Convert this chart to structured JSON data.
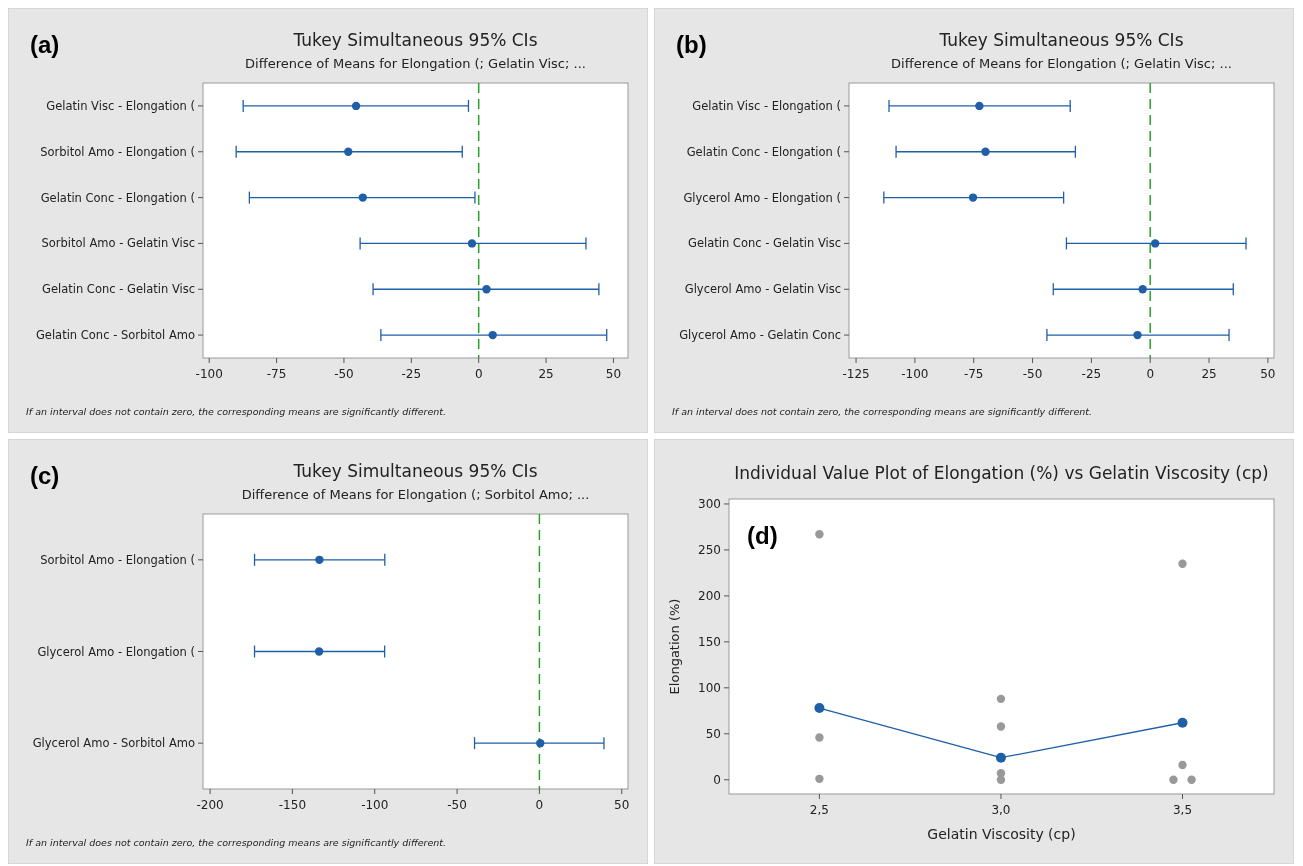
{
  "chart_data": [
    {
      "type": "scatter",
      "orientation": "horizontal",
      "title": "Tukey Simultaneous 95% CIs",
      "subtitle": "Difference of Means for Elongation (; Gelatin Visc; ...",
      "categories": [
        "Gelatin Visc - Elongation (",
        "Sorbitol Amo - Elongation (",
        "Gelatin Conc - Elongation (",
        "Sorbitol Amo - Gelatin Visc",
        "Gelatin Conc - Gelatin Visc",
        "Gelatin Conc - Sorbitol Amo"
      ],
      "series": [
        {
          "color": "#1f5fa8",
          "values": [
            -45.5,
            -48.4,
            -43,
            -2.5,
            2.9,
            5.2
          ],
          "errors": [
            [
              -87.4,
              -3.8
            ],
            [
              -90,
              -6.1
            ],
            [
              -85.1,
              -1.4
            ],
            [
              -44,
              39.8
            ],
            [
              -39.2,
              44.6
            ],
            [
              -36.3,
              47.5
            ]
          ]
        }
      ],
      "xlim": [
        -102.3,
        55.4
      ],
      "xticks": [
        -100,
        -75,
        -50,
        -25,
        0,
        25,
        50
      ],
      "ref_lines": [
        {
          "axis": "x",
          "value": 0,
          "color": "#2ca02c",
          "line_style": "dashed"
        }
      ],
      "marker": "circle",
      "grid": false,
      "annotations": [
        "(a)",
        "If an interval does not contain zero, the corresponding means are significantly different."
      ]
    },
    {
      "type": "scatter",
      "orientation": "horizontal",
      "title": "Tukey Simultaneous 95% CIs",
      "subtitle": "Difference of Means for Elongation (; Gelatin Visc; ...",
      "categories": [
        "Gelatin Visc - Elongation (",
        "Gelatin Conc - Elongation (",
        "Glycerol Amo - Elongation (",
        "Gelatin Conc - Gelatin Visc",
        "Glycerol Amo - Gelatin Visc",
        "Glycerol Amo - Gelatin Conc"
      ],
      "series": [
        {
          "color": "#1f5fa8",
          "values": [
            -72.6,
            -70,
            -75.3,
            2.1,
            -3.2,
            -5.4
          ],
          "errors": [
            [
              -111,
              -34
            ],
            [
              -108,
              -31.8
            ],
            [
              -113.2,
              -36.8
            ],
            [
              -35.6,
              40.7
            ],
            [
              -41.2,
              35.3
            ],
            [
              -43.9,
              33.5
            ]
          ]
        }
      ],
      "xlim": [
        -128,
        52.6
      ],
      "xticks": [
        -125,
        -100,
        -75,
        -50,
        -25,
        0,
        25,
        50
      ],
      "ref_lines": [
        {
          "axis": "x",
          "value": 0,
          "color": "#2ca02c",
          "line_style": "dashed"
        }
      ],
      "marker": "circle",
      "grid": false,
      "annotations": [
        "(b)",
        "If an interval does not contain zero, the corresponding means are significantly different."
      ]
    },
    {
      "type": "scatter",
      "orientation": "horizontal",
      "title": "Tukey Simultaneous 95% CIs",
      "subtitle": "Difference of Means for Elongation (; Sorbitol Amo; ...",
      "categories": [
        "Sorbitol Amo - Elongation (",
        "Glycerol Amo - Elongation (",
        "Glycerol Amo - Sorbitol Amo"
      ],
      "series": [
        {
          "color": "#1f5fa8",
          "values": [
            -133.6,
            -133.8,
            0.5
          ],
          "errors": [
            [
              -173,
              -93.9
            ],
            [
              -173,
              -94
            ],
            [
              -39.4,
              39.2
            ]
          ]
        }
      ],
      "xlim": [
        -204.3,
        53.8
      ],
      "xticks": [
        -200,
        -150,
        -100,
        -50,
        0,
        50
      ],
      "ref_lines": [
        {
          "axis": "x",
          "value": 0,
          "color": "#2ca02c",
          "line_style": "dashed"
        }
      ],
      "marker": "circle",
      "grid": false,
      "annotations": [
        "(c)",
        "If an interval does not contain zero, the corresponding means are significantly different."
      ]
    },
    {
      "type": "scatter",
      "title": "Individual Value Plot of Elongation (%) vs Gelatin Viscosity (cp)",
      "xlabel": "Gelatin Viscosity (cp)",
      "ylabel": "Elongation (%)",
      "series": [
        {
          "color": "#999999",
          "x": [
            2.5,
            2.5,
            2.5,
            3,
            3,
            3,
            3,
            3.5,
            3.5,
            3.475,
            3.525
          ],
          "values": [
            267,
            46,
            1,
            88,
            58,
            7,
            0,
            235,
            16,
            0,
            0
          ]
        },
        {
          "type": "line",
          "color": "#1f5fa8",
          "x": [
            2.5,
            3,
            3.5
          ],
          "values": [
            78,
            24,
            62
          ]
        }
      ],
      "xlim": [
        2.251,
        3.752
      ],
      "xticks": [
        {
          "value": 2.5,
          "label": "2,5"
        },
        {
          "value": 3,
          "label": "3,0"
        },
        {
          "value": 3.5,
          "label": "3,5"
        }
      ],
      "ylim": [
        -15.5,
        305.4
      ],
      "yticks": [
        0,
        50,
        100,
        150,
        200,
        250,
        300
      ],
      "marker": "circle",
      "grid": false,
      "annotations": [
        "(d)"
      ]
    }
  ]
}
